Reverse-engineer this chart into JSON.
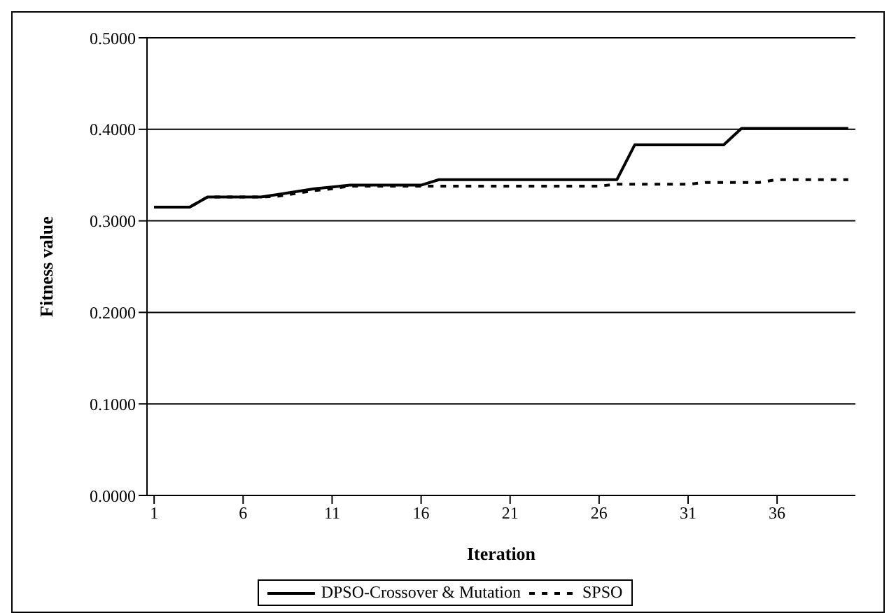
{
  "chart_data": {
    "type": "line",
    "xlabel": "Iteration",
    "ylabel": "Fitness value",
    "x": [
      1,
      2,
      3,
      4,
      5,
      6,
      7,
      8,
      9,
      10,
      11,
      12,
      13,
      14,
      15,
      16,
      17,
      18,
      19,
      20,
      21,
      22,
      23,
      24,
      25,
      26,
      27,
      28,
      29,
      30,
      31,
      32,
      33,
      34,
      35,
      36,
      37,
      38,
      39,
      40
    ],
    "series": [
      {
        "name": "DPSO-Crossover & Mutation",
        "color": "#000000",
        "line_style": "solid",
        "values": [
          0.315,
          0.315,
          0.315,
          0.326,
          0.326,
          0.326,
          0.326,
          0.329,
          0.332,
          0.335,
          0.337,
          0.339,
          0.339,
          0.339,
          0.339,
          0.339,
          0.345,
          0.345,
          0.345,
          0.345,
          0.345,
          0.345,
          0.345,
          0.345,
          0.345,
          0.345,
          0.345,
          0.383,
          0.383,
          0.383,
          0.383,
          0.383,
          0.383,
          0.401,
          0.401,
          0.401,
          0.401,
          0.401,
          0.401,
          0.401
        ]
      },
      {
        "name": "SPSO",
        "color": "#000000",
        "line_style": "dashed",
        "values": [
          0.315,
          0.315,
          0.315,
          0.326,
          0.326,
          0.326,
          0.326,
          0.327,
          0.33,
          0.333,
          0.335,
          0.338,
          0.338,
          0.338,
          0.338,
          0.338,
          0.338,
          0.338,
          0.338,
          0.338,
          0.338,
          0.338,
          0.338,
          0.338,
          0.338,
          0.338,
          0.34,
          0.34,
          0.34,
          0.34,
          0.34,
          0.342,
          0.342,
          0.342,
          0.342,
          0.345,
          0.345,
          0.345,
          0.345,
          0.345
        ]
      }
    ],
    "xlim": [
      0.6,
      40.4
    ],
    "xticks": [
      1,
      6,
      11,
      16,
      21,
      26,
      31,
      36
    ],
    "ylim": [
      0,
      0.5
    ],
    "yticks": [
      {
        "value": 0,
        "label": "0.0000"
      },
      {
        "value": 0.1,
        "label": "0.1000"
      },
      {
        "value": 0.2,
        "label": "0.2000"
      },
      {
        "value": 0.3,
        "label": "0.3000"
      },
      {
        "value": 0.4,
        "label": "0.4000"
      },
      {
        "value": 0.5,
        "label": "0.5000"
      }
    ],
    "grid": "y",
    "legend": "bottom",
    "marker": "none"
  }
}
